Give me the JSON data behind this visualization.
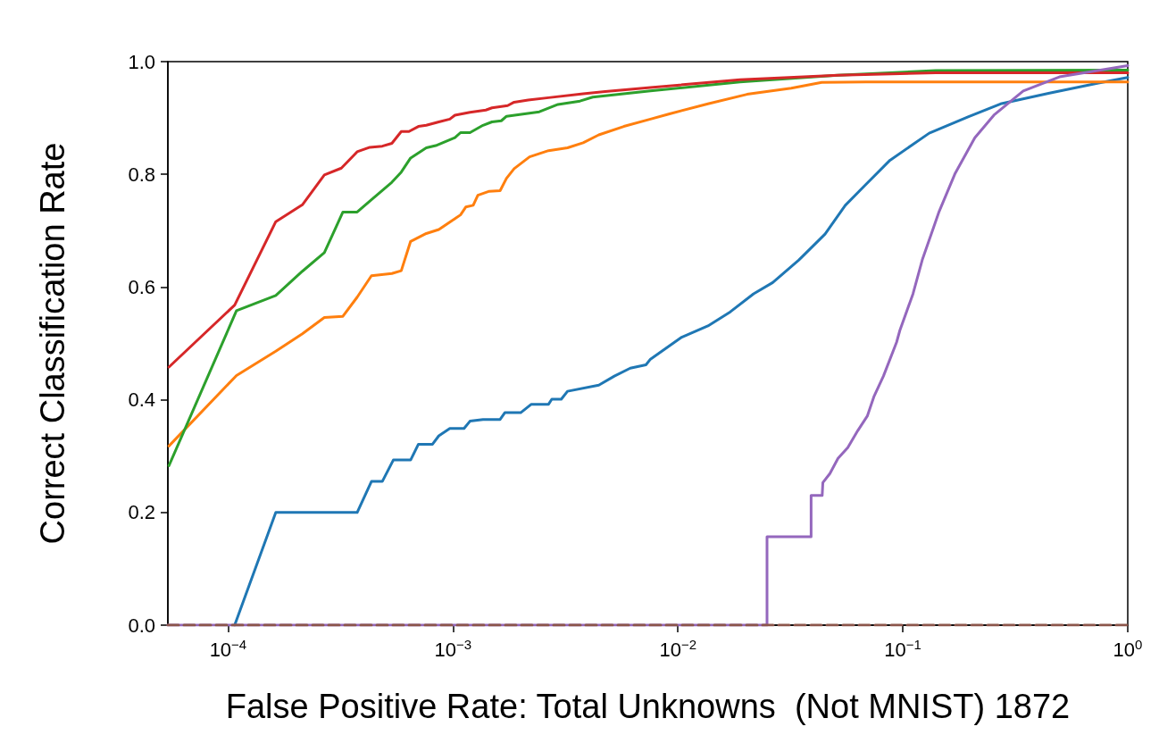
{
  "chart_data": {
    "type": "line",
    "xlabel": "False Positive Rate: Total Unknowns  (Not MNIST) 1872",
    "ylabel": "Correct Classification Rate",
    "log": "x",
    "grid": false,
    "marker": "none",
    "line_style": "solid",
    "xlim": [
      5.4e-05,
      1
    ],
    "ylim": [
      0,
      1
    ],
    "xticks": [
      {
        "value": 0.0001,
        "label": "10$^{−4}$"
      },
      {
        "value": 0.001,
        "label": "10$^{−3}$"
      },
      {
        "value": 0.01,
        "label": "10$^{−2}$"
      },
      {
        "value": 0.1,
        "label": "10$^{−1}$"
      },
      {
        "value": 1,
        "label": "10$^{0}$"
      }
    ],
    "yticks": [
      {
        "value": 0,
        "label": "0.0"
      },
      {
        "value": 0.2,
        "label": "0.2"
      },
      {
        "value": 0.4,
        "label": "0.4"
      },
      {
        "value": 0.6,
        "label": "0.6"
      },
      {
        "value": 0.8,
        "label": "0.8"
      },
      {
        "value": 1,
        "label": "1.0"
      }
    ],
    "series": [
      {
        "color": "#1f77b4",
        "x": [
          0.000107,
          0.000163,
          0.000375,
          0.000434,
          0.000485,
          0.000543,
          0.000648,
          0.000702,
          0.000811,
          0.000865,
          0.000968,
          0.00112,
          0.00119,
          0.00136,
          0.00162,
          0.0017,
          0.002,
          0.00223,
          0.00266,
          0.00275,
          0.00303,
          0.00323,
          0.00445,
          0.00522,
          0.00614,
          0.00721,
          0.00755,
          0.0104,
          0.0136,
          0.0171,
          0.0217,
          0.0264,
          0.0345,
          0.0451,
          0.0555,
          0.0673,
          0.0877,
          0.131,
          0.195,
          0.272,
          0.449,
          0.74,
          1
        ],
        "values": [
          0,
          0.2,
          0.2,
          0.255,
          0.255,
          0.293,
          0.293,
          0.321,
          0.321,
          0.336,
          0.349,
          0.349,
          0.362,
          0.365,
          0.365,
          0.377,
          0.377,
          0.392,
          0.392,
          0.401,
          0.401,
          0.415,
          0.426,
          0.442,
          0.456,
          0.462,
          0.472,
          0.511,
          0.531,
          0.556,
          0.588,
          0.608,
          0.648,
          0.694,
          0.745,
          0.779,
          0.825,
          0.873,
          0.902,
          0.925,
          0.944,
          0.962,
          0.972
        ]
      },
      {
        "color": "#ff7f0e",
        "x": [
          5.46e-05,
          0.000109,
          0.000163,
          0.000214,
          0.000268,
          0.000324,
          0.000375,
          0.000434,
          0.000535,
          0.000589,
          0.000648,
          0.000761,
          0.000865,
          0.000984,
          0.00108,
          0.00114,
          0.00123,
          0.00129,
          0.00145,
          0.00162,
          0.00173,
          0.00187,
          0.00219,
          0.00266,
          0.00323,
          0.00379,
          0.00445,
          0.00575,
          0.00755,
          0.0091,
          0.0136,
          0.0203,
          0.0319,
          0.0436,
          0.0685,
          1
        ],
        "values": [
          0.318,
          0.443,
          0.486,
          0.517,
          0.546,
          0.548,
          0.582,
          0.62,
          0.624,
          0.629,
          0.681,
          0.695,
          0.702,
          0.717,
          0.728,
          0.742,
          0.745,
          0.763,
          0.77,
          0.771,
          0.793,
          0.81,
          0.831,
          0.842,
          0.847,
          0.856,
          0.87,
          0.885,
          0.898,
          0.907,
          0.925,
          0.942,
          0.953,
          0.963,
          0.964,
          0.964
        ]
      },
      {
        "color": "#2ca02c",
        "x": [
          5.46e-05,
          0.000109,
          0.000163,
          0.000214,
          0.000268,
          0.000324,
          0.000375,
          0.000434,
          0.000535,
          0.000589,
          0.000648,
          0.000761,
          0.000838,
          0.00102,
          0.00108,
          0.00119,
          0.00136,
          0.00149,
          0.00164,
          0.00173,
          0.00242,
          0.00293,
          0.00367,
          0.00418,
          0.00755,
          0.0189,
          0.0514,
          0.14,
          1
        ],
        "values": [
          0.283,
          0.558,
          0.585,
          0.628,
          0.661,
          0.733,
          0.733,
          0.755,
          0.786,
          0.804,
          0.829,
          0.847,
          0.851,
          0.865,
          0.874,
          0.874,
          0.887,
          0.893,
          0.895,
          0.903,
          0.911,
          0.924,
          0.93,
          0.937,
          0.948,
          0.964,
          0.976,
          0.984,
          0.985
        ]
      },
      {
        "color": "#d62728",
        "x": [
          5.46e-05,
          0.000107,
          0.000163,
          0.000214,
          0.000268,
          0.000319,
          0.000375,
          0.000427,
          0.000485,
          0.000535,
          0.000589,
          0.000637,
          0.000702,
          0.000761,
          0.000865,
          0.000968,
          0.00102,
          0.00119,
          0.0014,
          0.00149,
          0.00175,
          0.00187,
          0.00216,
          0.00266,
          0.00379,
          0.00475,
          0.00755,
          0.0189,
          0.0514,
          0.14,
          1
        ],
        "values": [
          0.458,
          0.568,
          0.716,
          0.746,
          0.799,
          0.811,
          0.84,
          0.848,
          0.85,
          0.855,
          0.876,
          0.876,
          0.885,
          0.887,
          0.893,
          0.898,
          0.905,
          0.91,
          0.914,
          0.918,
          0.922,
          0.928,
          0.932,
          0.936,
          0.943,
          0.947,
          0.954,
          0.968,
          0.976,
          0.98,
          0.98
        ]
      },
      {
        "color": "#9467bd",
        "x": [
          5.4e-05,
          0.0249,
          0.0249,
          0.0391,
          0.0391,
          0.0438,
          0.0441,
          0.0474,
          0.0515,
          0.0569,
          0.063,
          0.0695,
          0.0743,
          0.082,
          0.0938,
          0.097,
          0.111,
          0.122,
          0.145,
          0.171,
          0.209,
          0.254,
          0.343,
          0.497,
          1
        ],
        "values": [
          0,
          0,
          0.157,
          0.157,
          0.23,
          0.23,
          0.253,
          0.269,
          0.296,
          0.315,
          0.345,
          0.371,
          0.405,
          0.442,
          0.502,
          0.523,
          0.588,
          0.648,
          0.734,
          0.802,
          0.865,
          0.905,
          0.948,
          0.973,
          0.993
        ]
      },
      {
        "color": "#8c564b",
        "line_style": "dashed",
        "x": [
          5.4e-05,
          1
        ],
        "values": [
          0,
          0
        ]
      }
    ]
  }
}
